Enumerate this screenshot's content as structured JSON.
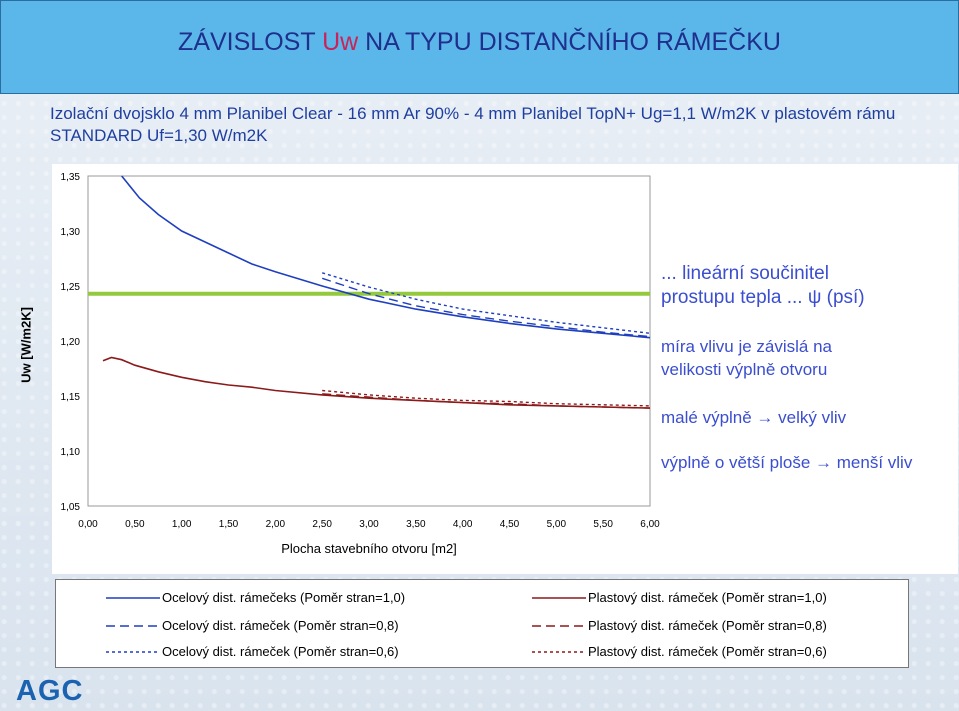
{
  "header": {
    "title_part1": "ZÁVISLOST ",
    "title_highlight": "Uw",
    "title_part2": " NA TYPU DISTANČNÍHO RÁMEČKU",
    "subtitle": "Izolační dvojsklo 4 mm Planibel Clear - 16 mm Ar 90% - 4 mm Planibel TopN+  Ug=1,1 W/m2K v plastovém rámu STANDARD  Uf=1,30 W/m2K"
  },
  "annotations": {
    "line1": "... lineární součinitel",
    "line2": "prostupu tepla ...  ψ (psí)",
    "line3": "míra vlivu je závislá na",
    "line4": "velikosti výplně otvoru",
    "line5": "malé výplně → velký vliv",
    "line6": "výplně o větší ploše → menší vliv"
  },
  "logo": "AGC",
  "colors": {
    "blue": "#1f3fbf",
    "red": "#8b1a1a",
    "green": "#94c83d",
    "accent": "#c8245a"
  },
  "chart_data": {
    "type": "line",
    "xlabel": "Plocha stavebního otvoru [m2]",
    "ylabel": "Uw [W/m2K]",
    "xlim": [
      0,
      6
    ],
    "ylim": [
      1.05,
      1.35
    ],
    "xticks": [
      "0,00",
      "0,50",
      "1,00",
      "1,50",
      "2,00",
      "2,50",
      "3,00",
      "3,50",
      "4,00",
      "4,50",
      "5,00",
      "5,50",
      "6,00"
    ],
    "yticks": [
      "1,05",
      "1,10",
      "1,15",
      "1,20",
      "1,25",
      "1,30",
      "1,35"
    ],
    "reference_line": {
      "y": 1.243,
      "color": "#94c83d"
    },
    "series": [
      {
        "name": "Ocelový dist. rámečeks (Poměr stran=1,0)",
        "color": "#1f3fbf",
        "dash": "solid",
        "x": [
          0.36,
          0.55,
          0.75,
          1.0,
          1.25,
          1.5,
          1.75,
          2.0,
          2.5,
          3.0,
          3.5,
          4.0,
          4.5,
          5.0,
          5.5,
          6.0
        ],
        "y": [
          1.35,
          1.33,
          1.315,
          1.3,
          1.29,
          1.28,
          1.27,
          1.263,
          1.25,
          1.238,
          1.229,
          1.222,
          1.216,
          1.211,
          1.207,
          1.203
        ]
      },
      {
        "name": "Ocelový dist. rámeček (Poměr stran=0,8)",
        "color": "#1f3fbf",
        "dash": "long",
        "x": [
          2.5,
          3.0,
          3.5,
          4.0,
          4.5,
          5.0,
          5.5,
          6.0
        ],
        "y": [
          1.257,
          1.243,
          1.232,
          1.224,
          1.218,
          1.213,
          1.208,
          1.204
        ]
      },
      {
        "name": "Ocelový dist. rámeček (Poměr stran=0,6)",
        "color": "#1f3fbf",
        "dash": "dot",
        "x": [
          2.5,
          3.0,
          3.5,
          4.0,
          4.5,
          5.0,
          5.5,
          6.0
        ],
        "y": [
          1.262,
          1.249,
          1.238,
          1.229,
          1.223,
          1.217,
          1.212,
          1.207
        ]
      },
      {
        "name": "Plastový dist. rámeček (Poměr stran=1,0)",
        "color": "#8b1a1a",
        "dash": "solid",
        "x": [
          0.16,
          0.25,
          0.36,
          0.5,
          0.75,
          1.0,
          1.25,
          1.5,
          1.75,
          2.0,
          2.5,
          3.0,
          3.5,
          4.0,
          4.5,
          5.0,
          5.5,
          6.0
        ],
        "y": [
          1.182,
          1.185,
          1.183,
          1.178,
          1.172,
          1.167,
          1.163,
          1.16,
          1.158,
          1.155,
          1.151,
          1.148,
          1.146,
          1.144,
          1.142,
          1.141,
          1.14,
          1.139
        ]
      },
      {
        "name": "Plastový dist. rámeček (Poměr stran=0,8)",
        "color": "#8b1a1a",
        "dash": "long",
        "x": [
          2.5,
          3.0,
          3.5,
          4.0,
          4.5,
          5.0,
          5.5,
          6.0
        ],
        "y": [
          1.152,
          1.149,
          1.146,
          1.144,
          1.143,
          1.141,
          1.14,
          1.139
        ]
      },
      {
        "name": "Plastový dist. rámeček (Poměr stran=0,6)",
        "color": "#8b1a1a",
        "dash": "dot",
        "x": [
          2.5,
          3.0,
          3.5,
          4.0,
          4.5,
          5.0,
          5.5,
          6.0
        ],
        "y": [
          1.155,
          1.151,
          1.148,
          1.146,
          1.145,
          1.143,
          1.142,
          1.141
        ]
      }
    ]
  }
}
